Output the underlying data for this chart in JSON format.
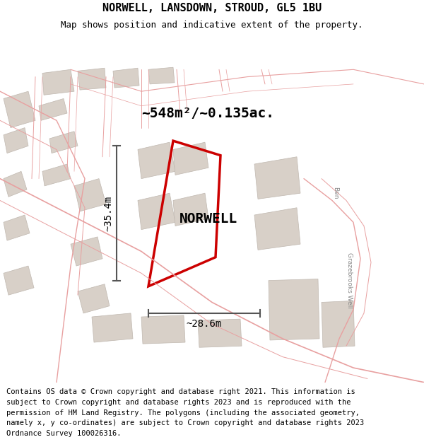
{
  "title": "NORWELL, LANSDOWN, STROUD, GL5 1BU",
  "subtitle": "Map shows position and indicative extent of the property.",
  "area_label": "~548m²/~0.135ac.",
  "property_name": "NORWELL",
  "width_label": "~28.6m",
  "height_label": "~35.4m",
  "footer": "Contains OS data © Crown copyright and database right 2021. This information is subject to Crown copyright and database rights 2023 and is reproduced with the permission of HM Land Registry. The polygons (including the associated geometry, namely x, y co-ordinates) are subject to Crown copyright and database rights 2023 Ordnance Survey 100026316.",
  "bg_color": "#f5f0eb",
  "map_bg": "#f0ece6",
  "red_plot_color": "#cc0000",
  "building_gray": "#d8d0c8",
  "road_line_color": "#e8a0a0",
  "title_fontsize": 11,
  "subtitle_fontsize": 9,
  "footer_fontsize": 7.5
}
